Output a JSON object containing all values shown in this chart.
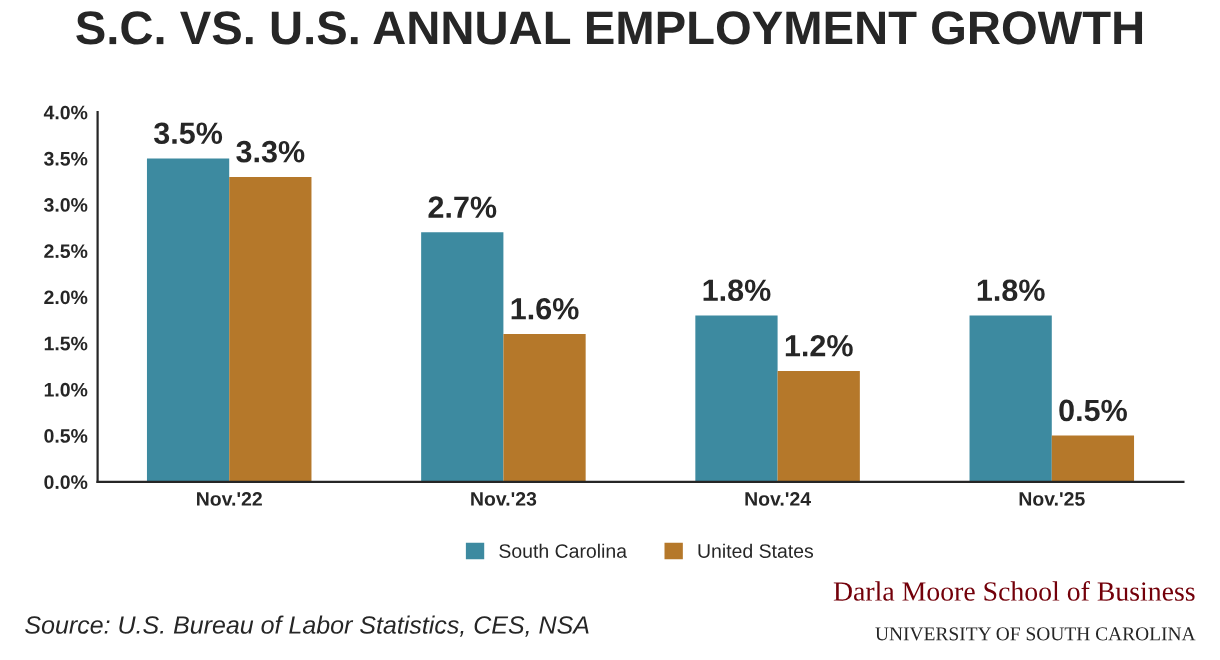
{
  "chart_data": {
    "type": "bar",
    "title": "S.C. VS. U.S. ANNUAL EMPLOYMENT GROWTH",
    "categories": [
      "Nov.'22",
      "Nov.'23",
      "Nov.'24",
      "Nov.'25"
    ],
    "series": [
      {
        "name": "South Carolina",
        "color": "#3d8aa0",
        "values": [
          3.5,
          2.7,
          1.8,
          1.8
        ],
        "value_labels": [
          "3.5%",
          "2.7%",
          "1.8%",
          "1.8%"
        ]
      },
      {
        "name": "United States",
        "color": "#b5782a",
        "values": [
          3.3,
          1.6,
          1.2,
          0.5
        ],
        "value_labels": [
          "3.3%",
          "1.6%",
          "1.2%",
          "0.5%"
        ]
      }
    ],
    "ylim": [
      0,
      4.0
    ],
    "yticks": [
      {
        "value": 0,
        "label": "0.0%"
      },
      {
        "value": 0.5,
        "label": "0.5%"
      },
      {
        "value": 1.0,
        "label": "1.0%"
      },
      {
        "value": 1.5,
        "label": "1.5%"
      },
      {
        "value": 2.0,
        "label": "2.0%"
      },
      {
        "value": 2.5,
        "label": "2.5%"
      },
      {
        "value": 3.0,
        "label": "3.0%"
      },
      {
        "value": 3.5,
        "label": "3.5%"
      },
      {
        "value": 4.0,
        "label": "4.0%"
      }
    ],
    "legend": "bottom",
    "grid": false,
    "annotations": [
      "Source: U.S. Bureau of Labor Statistics, CES, NSA",
      "Darla Moore School of Business",
      "UNIVERSITY OF SOUTH CAROLINA"
    ]
  }
}
